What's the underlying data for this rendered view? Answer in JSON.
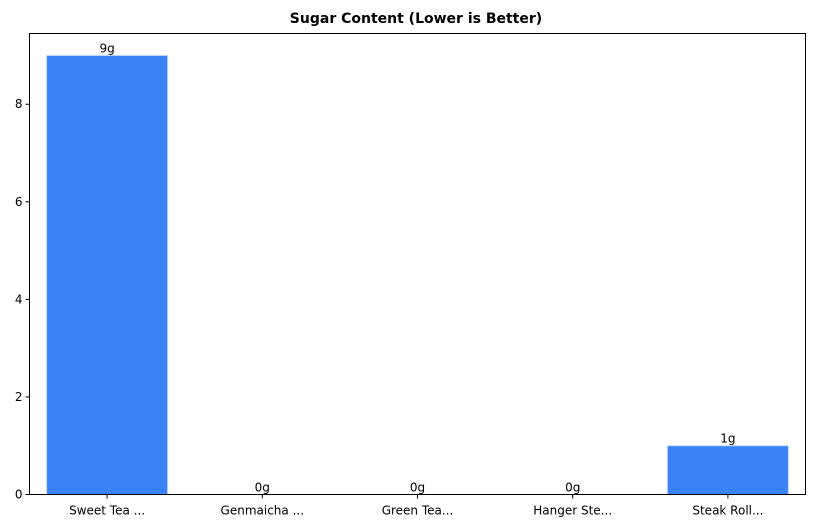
{
  "chart_data": {
    "type": "bar",
    "title": "Sugar Content (Lower is Better)",
    "xlabel": "",
    "ylabel": "",
    "categories": [
      "Sweet Tea ...",
      "Genmaicha ...",
      "Green Tea...",
      "Hanger Ste...",
      "Steak Roll..."
    ],
    "values": [
      9,
      0,
      0,
      0,
      1
    ],
    "data_labels": [
      "9g",
      "0g",
      "0g",
      "0g",
      "1g"
    ],
    "ylim": [
      0,
      9.45
    ],
    "yticks": [
      0,
      2,
      4,
      6,
      8
    ],
    "grid": false,
    "legend": "none",
    "colors": {
      "bar": "#3b82f6",
      "bar_edge": "#bfdbfe"
    }
  }
}
